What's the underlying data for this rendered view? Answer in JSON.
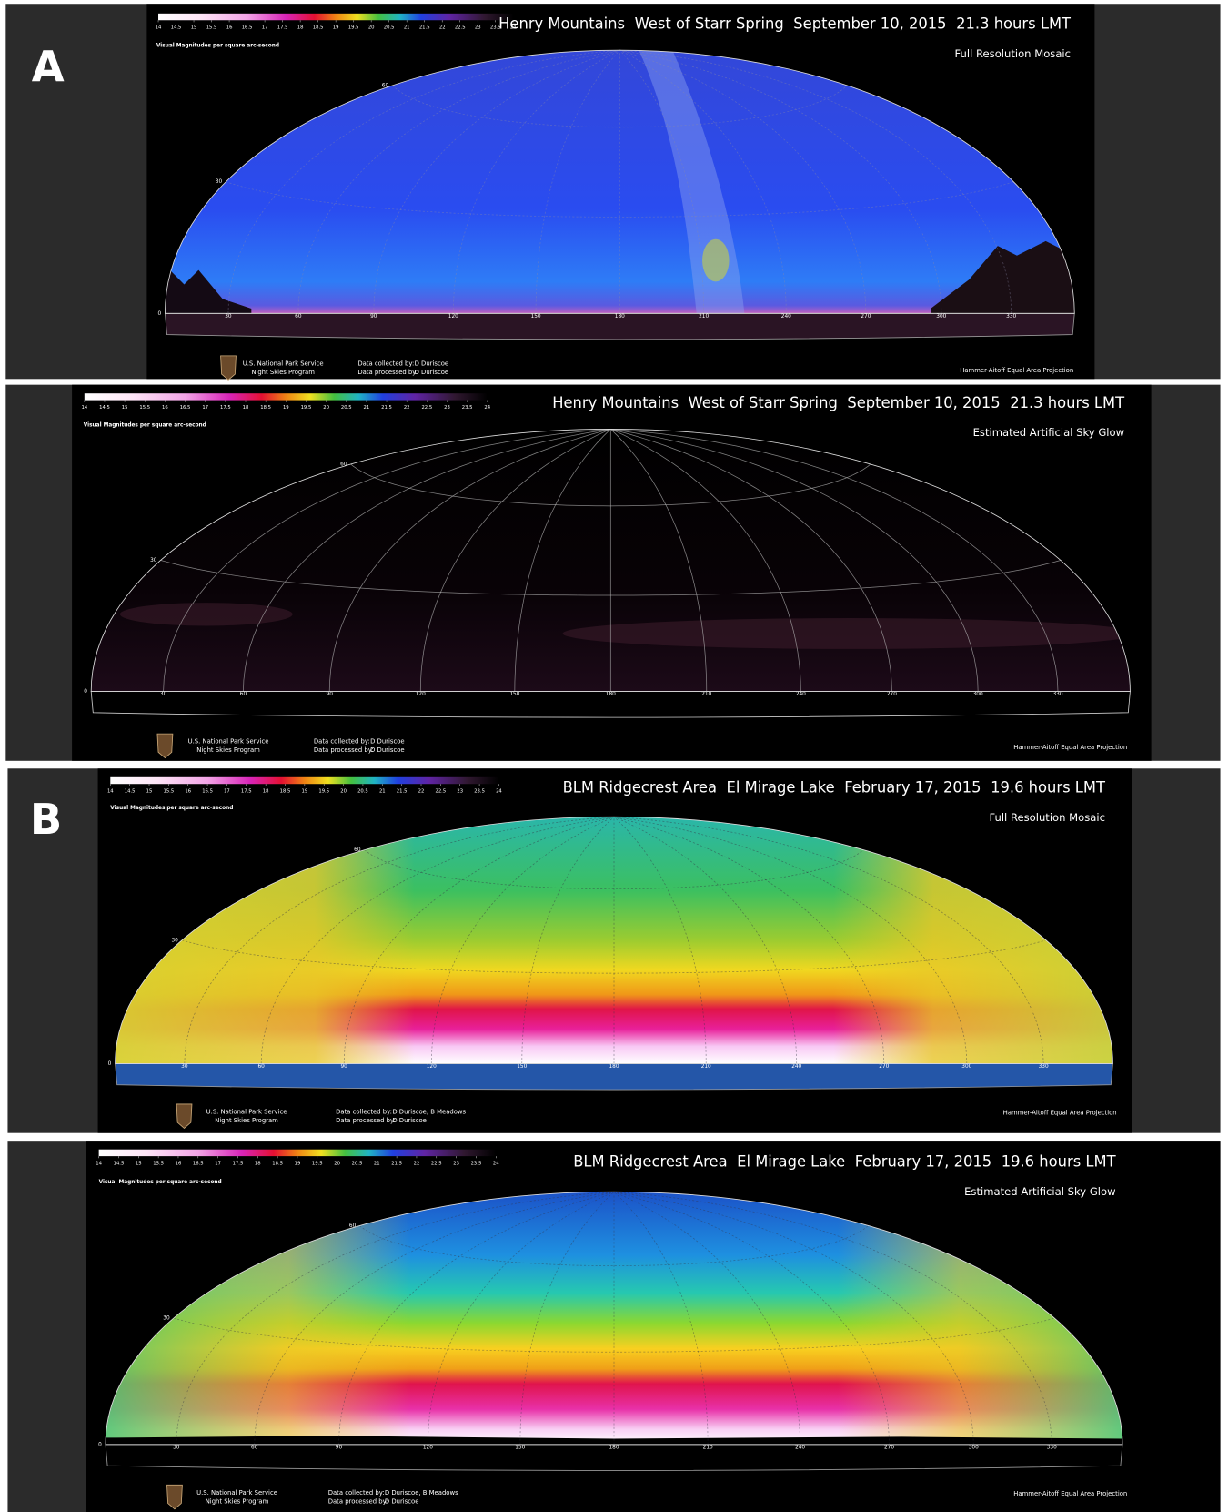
{
  "panel_labels": [
    "A",
    "B"
  ],
  "colorbar": {
    "label": "Visual Magnitudes per square arc-second",
    "range": [
      14,
      24
    ],
    "ticks": [
      14,
      14.5,
      15,
      15.5,
      16,
      16.5,
      17,
      17.5,
      18,
      18.5,
      19,
      19.5,
      20,
      20.5,
      21,
      21.5,
      22,
      22.5,
      23,
      23.5,
      24
    ]
  },
  "grid": {
    "azimuth_ticks": [
      30,
      60,
      90,
      120,
      150,
      180,
      210,
      240,
      270,
      300,
      330
    ],
    "altitude_ticks": [
      0,
      30,
      60
    ]
  },
  "credits": {
    "agency": "U.S. National Park Service",
    "program": "Night Skies Program",
    "collected_label": "Data collected by:",
    "processed_label": "Data processed by:",
    "projection": "Hammer-Aitoff Equal Area Projection"
  },
  "panels": [
    {
      "title": [
        "Henry Mountains",
        "West of Starr Spring",
        "September 10, 2015",
        "21.3 hours LMT"
      ],
      "subtitle": "Full Resolution Mosaic",
      "collected_by": "D Duriscoe",
      "processed_by": "D Duriscoe"
    },
    {
      "title": [
        "Henry Mountains",
        "West of Starr Spring",
        "September 10, 2015",
        "21.3 hours LMT"
      ],
      "subtitle": "Estimated Artificial Sky Glow",
      "collected_by": "D Duriscoe",
      "processed_by": "D Duriscoe"
    },
    {
      "title": [
        "BLM Ridgecrest Area",
        "El Mirage Lake",
        "February 17, 2015",
        "19.6 hours LMT"
      ],
      "subtitle": "Full Resolution Mosaic",
      "collected_by": "D Duriscoe, B Meadows",
      "processed_by": "D Duriscoe"
    },
    {
      "title": [
        "BLM Ridgecrest Area",
        "El Mirage Lake",
        "February 17, 2015",
        "19.6 hours LMT"
      ],
      "subtitle": "Estimated Artificial Sky Glow",
      "collected_by": "D Duriscoe, B Meadows",
      "processed_by": "D Duriscoe"
    }
  ]
}
